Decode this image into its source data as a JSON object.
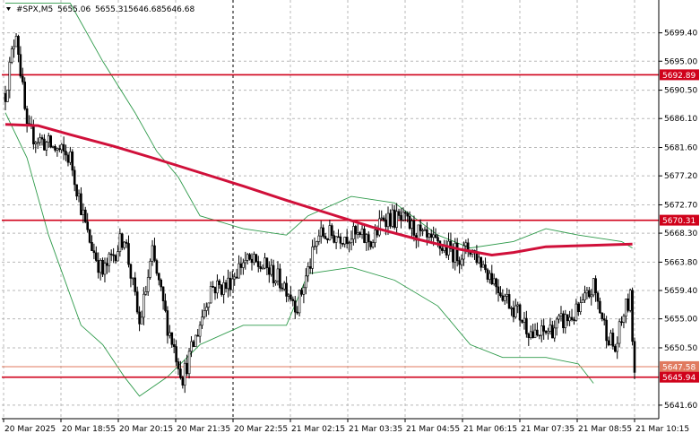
{
  "header": {
    "symbol": "#SPX,M5",
    "open": "5655.06",
    "high": "5655.31",
    "low": "5646.68",
    "close": "5646.68"
  },
  "chart_data": {
    "type": "candlestick",
    "title": "#SPX,M5",
    "ylim": [
      5639.5,
      5704.5
    ],
    "y_ticks": [
      5699.4,
      5695.0,
      5690.5,
      5686.1,
      5681.6,
      5677.2,
      5672.7,
      5668.3,
      5663.8,
      5659.4,
      5655.0,
      5650.5,
      5641.6
    ],
    "x_ticks": [
      "20 Mar 2025",
      "20 Mar 18:55",
      "20 Mar 20:15",
      "20 Mar 21:35",
      "20 Mar 22:55",
      "21 Mar 02:15",
      "21 Mar 03:35",
      "21 Mar 04:55",
      "21 Mar 06:15",
      "21 Mar 07:35",
      "21 Mar 08:55",
      "21 Mar 10:15"
    ],
    "grid": true,
    "session_separator_at": "20 Mar 22:55",
    "levels": [
      {
        "value": 5692.89,
        "label": "5692.89",
        "color": "#d0021b"
      },
      {
        "value": 5670.31,
        "label": "5670.31",
        "color": "#d0021b"
      },
      {
        "value": 5647.58,
        "label": "5647.58",
        "color": "#e07a5f"
      },
      {
        "value": 5645.94,
        "label": "5645.94",
        "color": "#d0021b"
      }
    ],
    "last_price": 5646.68,
    "series_colors": {
      "bull": "#ffffff",
      "bear": "#000000",
      "moving_average": "#d0103a",
      "bollinger": "#2e9a4a"
    },
    "moving_average": [
      [
        0,
        5685.2
      ],
      [
        15,
        5685.0
      ],
      [
        30,
        5683.6
      ],
      [
        50,
        5681.8
      ],
      [
        70,
        5679.8
      ],
      [
        90,
        5677.7
      ],
      [
        110,
        5675.6
      ],
      [
        130,
        5673.4
      ],
      [
        150,
        5671.3
      ],
      [
        170,
        5669.2
      ],
      [
        190,
        5667.4
      ],
      [
        210,
        5665.8
      ],
      [
        225,
        5664.9
      ],
      [
        235,
        5665.3
      ],
      [
        250,
        5666.2
      ],
      [
        270,
        5666.4
      ],
      [
        290,
        5666.6
      ]
    ],
    "bollinger_upper": [
      [
        0,
        5704
      ],
      [
        30,
        5704
      ],
      [
        45,
        5695
      ],
      [
        60,
        5687
      ],
      [
        70,
        5681
      ],
      [
        80,
        5677
      ],
      [
        90,
        5671
      ],
      [
        110,
        5669
      ],
      [
        130,
        5668
      ],
      [
        140,
        5671
      ],
      [
        160,
        5674
      ],
      [
        180,
        5673
      ],
      [
        200,
        5668
      ],
      [
        215,
        5666
      ],
      [
        235,
        5667
      ],
      [
        250,
        5669
      ],
      [
        265,
        5668
      ],
      [
        285,
        5667
      ],
      [
        290,
        5666
      ]
    ],
    "bollinger_lower": [
      [
        0,
        5687
      ],
      [
        10,
        5680
      ],
      [
        20,
        5668
      ],
      [
        35,
        5654
      ],
      [
        45,
        5651
      ],
      [
        55,
        5646
      ],
      [
        62,
        5643
      ],
      [
        75,
        5646
      ],
      [
        90,
        5651
      ],
      [
        110,
        5654
      ],
      [
        130,
        5654
      ],
      [
        140,
        5662
      ],
      [
        160,
        5663
      ],
      [
        180,
        5661
      ],
      [
        200,
        5657
      ],
      [
        215,
        5651
      ],
      [
        230,
        5649
      ],
      [
        250,
        5649
      ],
      [
        265,
        5648
      ],
      [
        272,
        5645
      ]
    ]
  }
}
